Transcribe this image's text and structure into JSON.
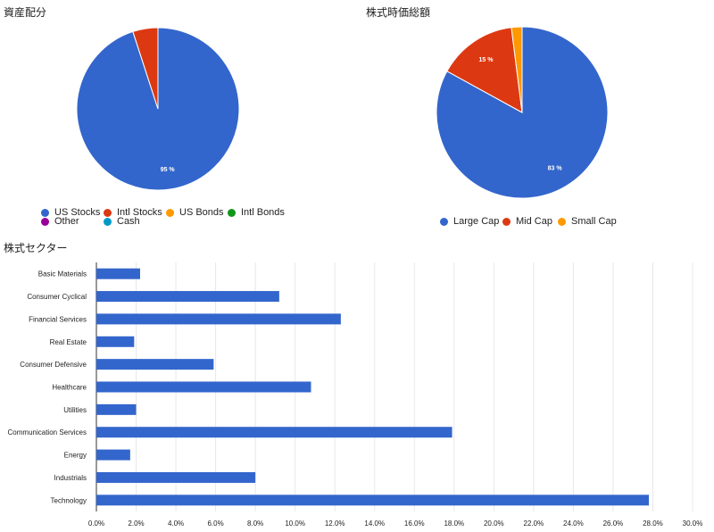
{
  "chart_data": [
    {
      "type": "pie",
      "title": "資産配分",
      "labels": [
        "US Stocks",
        "Intl Stocks",
        "US Bonds",
        "Intl Bonds",
        "Other",
        "Cash"
      ],
      "values": [
        95,
        5,
        0,
        0,
        0,
        0
      ],
      "slice_labels": [
        "95 %",
        "",
        "",
        "",
        "",
        ""
      ],
      "colors": [
        "#3366cc",
        "#dc3912",
        "#ff9900",
        "#109618",
        "#990099",
        "#0099c6"
      ],
      "legend_position": "bottom"
    },
    {
      "type": "pie",
      "title": "株式時価総額",
      "labels": [
        "Large Cap",
        "Mid Cap",
        "Small Cap"
      ],
      "values": [
        83,
        15,
        2
      ],
      "slice_labels": [
        "83 %",
        "15 %",
        ""
      ],
      "colors": [
        "#3366cc",
        "#dc3912",
        "#ff9900"
      ],
      "legend_position": "bottom"
    },
    {
      "type": "bar",
      "orientation": "horizontal",
      "title": "株式セクター",
      "categories": [
        "Basic Materials",
        "Consumer Cyclical",
        "Financial Services",
        "Real Estate",
        "Consumer Defensive",
        "Healthcare",
        "Utilities",
        "Communication Services",
        "Energy",
        "Industrials",
        "Technology"
      ],
      "values": [
        2.2,
        9.2,
        12.3,
        1.9,
        5.9,
        10.8,
        2.0,
        17.9,
        1.7,
        8.0,
        27.8
      ],
      "xlim": [
        0,
        30
      ],
      "xticks": [
        "0.0%",
        "2.0%",
        "4.0%",
        "6.0%",
        "8.0%",
        "10.0%",
        "12.0%",
        "14.0%",
        "16.0%",
        "18.0%",
        "20.0%",
        "22.0%",
        "24.0%",
        "26.0%",
        "28.0%",
        "30.0%"
      ],
      "color": "#3366cc",
      "grid": true,
      "legend": "none"
    }
  ]
}
